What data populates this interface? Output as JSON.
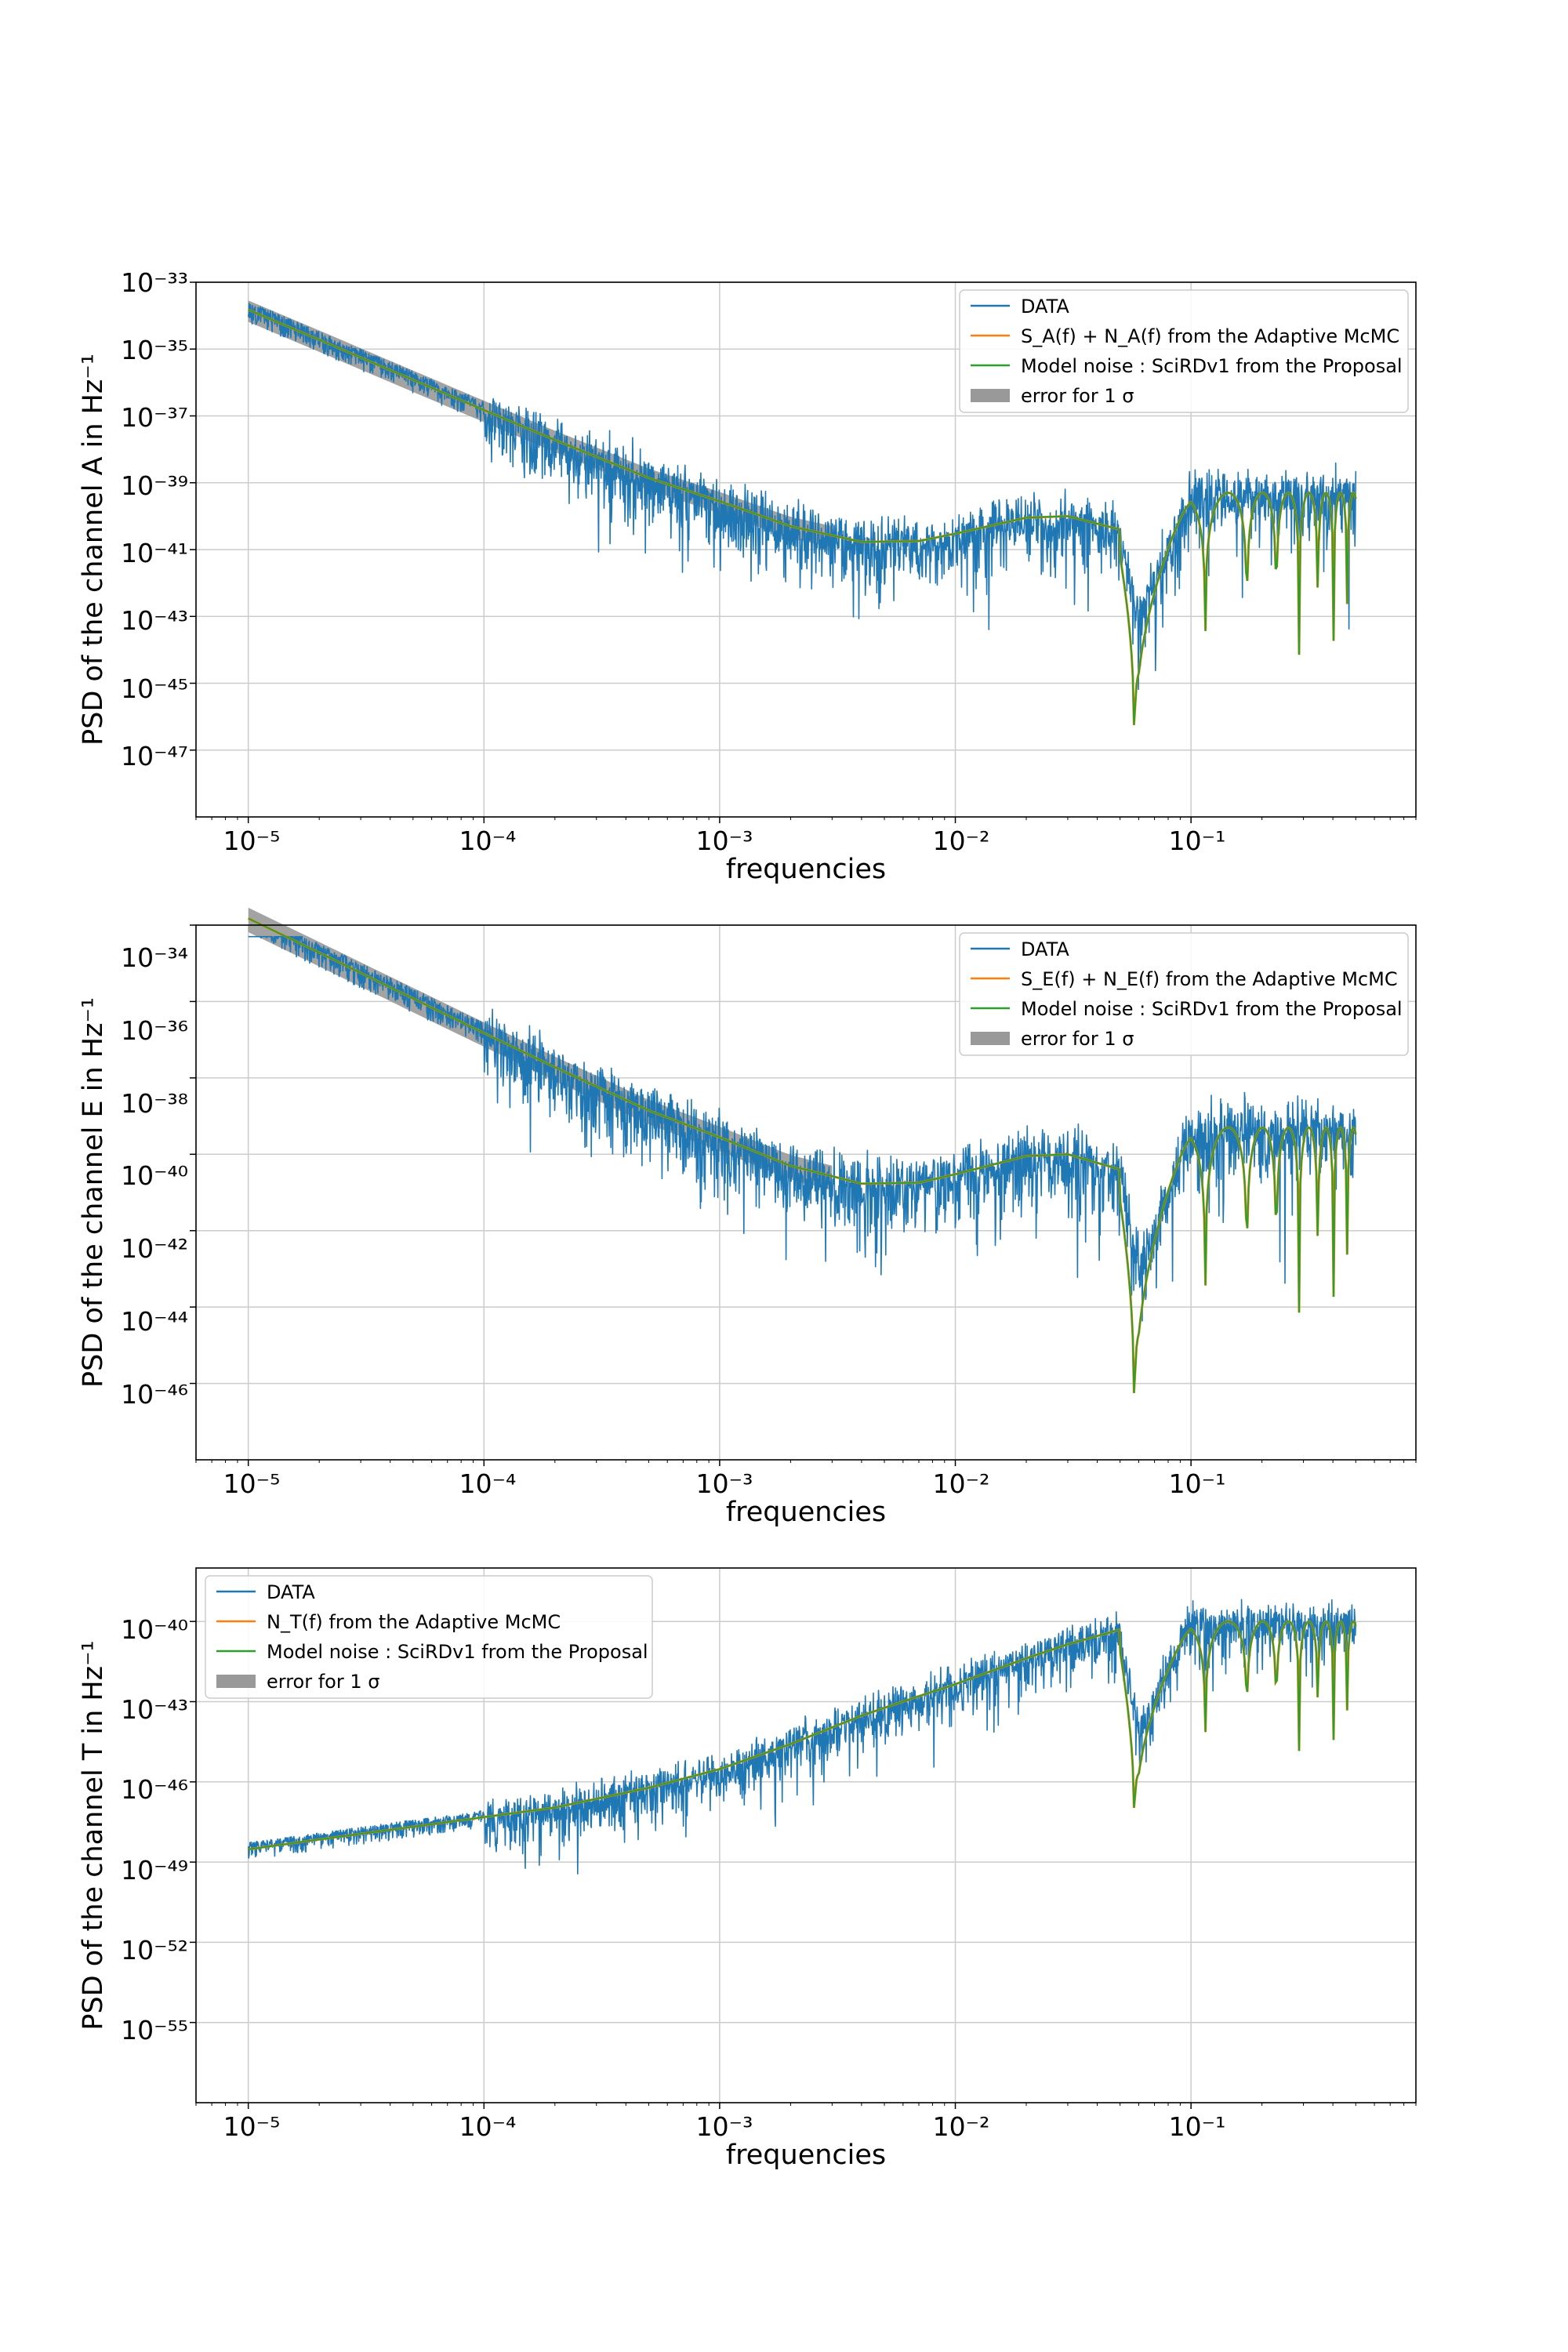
{
  "colors": {
    "data": "#1f77b4",
    "adaptive": "#ff7f0e",
    "model": "#2ca02c",
    "error": "#999999",
    "grid": "#cccccc"
  },
  "chart_data": [
    {
      "type": "line",
      "xlabel": "frequencies",
      "ylabel": "PSD of the channel A in Hz⁻¹",
      "xscale": "log",
      "yscale": "log",
      "xlim": [
        6e-06,
        0.9
      ],
      "ylim": [
        1e-49,
        1e-33
      ],
      "x_ticks": [
        1e-05,
        0.0001,
        0.001,
        0.01,
        0.1
      ],
      "x_tick_labels": [
        "10⁻⁵",
        "10⁻⁴",
        "10⁻³",
        "10⁻²",
        "10⁻¹"
      ],
      "y_tick_labels": [
        "10⁻³³",
        "10⁻³⁵",
        "10⁻³⁷",
        "10⁻³⁹",
        "10⁻⁴¹",
        "10⁻⁴³",
        "10⁻⁴⁵",
        "10⁻⁴⁷"
      ],
      "grid": true,
      "legend_position": "top-right",
      "legend": [
        "DATA",
        "S_A(f) + N_A(f) from the Adaptive McMC",
        "Model noise : SciRDv1 from the Proposal",
        "error for 1 σ"
      ],
      "series": [
        {
          "name": "DATA",
          "x": [
            1e-05,
            2e-05,
            3e-05,
            5e-05,
            8e-05,
            0.0001,
            0.0002,
            0.0005,
            0.001,
            0.002,
            0.004,
            0.01,
            0.03,
            0.06,
            0.1,
            0.2,
            0.5
          ],
          "y": [
            5e-35,
            1e-35,
            3e-37,
            5e-37,
            3e-37,
            5e-38,
            3e-38,
            5e-39,
            1e-39,
            2e-40,
            1e-40,
            1e-40,
            1e-39,
            1e-44,
            1e-39,
            1e-39,
            1e-39
          ]
        },
        {
          "name": "S_A(f) + N_A(f) from the Adaptive McMC",
          "x": [
            1e-05,
            2e-05,
            5e-05,
            0.0001,
            0.0002,
            0.0005,
            0.001,
            0.002,
            0.004,
            0.007,
            0.01,
            0.02,
            0.03,
            0.05,
            0.06,
            0.1,
            0.2,
            0.5
          ],
          "y": [
            1.5e-34,
            1.9e-35,
            1.2e-36,
            1.5e-37,
            1.9e-38,
            1.4e-39,
            2.8e-40,
            5e-41,
            1.7e-41,
            1.8e-41,
            3e-41,
            9e-41,
            1e-40,
            4e-41,
            1e-43,
            5e-40,
            5e-40,
            5e-40
          ]
        },
        {
          "name": "Model noise : SciRDv1 from the Proposal",
          "x": [
            1e-05,
            2e-05,
            5e-05,
            0.0001,
            0.0002,
            0.0005,
            0.001,
            0.002,
            0.004,
            0.007,
            0.01,
            0.02,
            0.03,
            0.05,
            0.06,
            0.1,
            0.2,
            0.5
          ],
          "y": [
            1.5e-34,
            1.9e-35,
            1.2e-36,
            1.5e-37,
            1.9e-38,
            1.4e-39,
            2.8e-40,
            5e-41,
            1.7e-41,
            1.8e-41,
            3e-41,
            9e-41,
            1e-40,
            4e-41,
            1e-43,
            5e-40,
            5e-40,
            5e-40
          ]
        }
      ]
    },
    {
      "type": "line",
      "xlabel": "frequencies",
      "ylabel": "PSD of the channel E in Hz⁻¹",
      "xscale": "log",
      "yscale": "log",
      "xlim": [
        6e-06,
        0.9
      ],
      "ylim": [
        1e-48,
        1e-34
      ],
      "x_ticks": [
        1e-05,
        0.0001,
        0.001,
        0.01,
        0.1
      ],
      "x_tick_labels": [
        "10⁻⁵",
        "10⁻⁴",
        "10⁻³",
        "10⁻²",
        "10⁻¹"
      ],
      "y_tick_labels": [
        "10⁻³⁴",
        "10⁻³⁶",
        "10⁻³⁸",
        "10⁻⁴⁰",
        "10⁻⁴²",
        "10⁻⁴⁴",
        "10⁻⁴⁶"
      ],
      "grid": true,
      "legend_position": "top-right",
      "legend": [
        "DATA",
        "S_E(f) + N_E(f) from the Adaptive McMC",
        "Model noise : SciRDv1 from the Proposal",
        "error for 1 σ"
      ],
      "series": [
        {
          "name": "DATA",
          "x": [
            1e-05,
            2e-05,
            3e-05,
            5e-05,
            8e-05,
            0.0001,
            0.0002,
            0.0005,
            0.001,
            0.002,
            0.004,
            0.01,
            0.03,
            0.06,
            0.1,
            0.2,
            0.5
          ],
          "y": [
            1e-34,
            5e-35,
            1e-35,
            3e-36,
            5e-37,
            3e-37,
            1e-38,
            3e-39,
            3e-39,
            5e-40,
            2e-40,
            5e-40,
            1e-39,
            1e-44,
            1e-39,
            1e-39,
            1e-39
          ]
        },
        {
          "name": "S_E(f) + N_E(f) from the Adaptive McMC",
          "x": [
            1e-05,
            2e-05,
            5e-05,
            0.0001,
            0.0002,
            0.0005,
            0.001,
            0.002,
            0.004,
            0.007,
            0.01,
            0.02,
            0.03,
            0.05,
            0.06,
            0.1,
            0.2,
            0.5
          ],
          "y": [
            1.5e-34,
            1.9e-35,
            1.2e-36,
            1.5e-37,
            1.9e-38,
            1.4e-39,
            2.8e-40,
            5e-41,
            1.7e-41,
            1.8e-41,
            3e-41,
            9e-41,
            1e-40,
            4e-41,
            1e-43,
            5e-40,
            5e-40,
            5e-40
          ]
        },
        {
          "name": "Model noise : SciRDv1 from the Proposal",
          "x": [
            1e-05,
            2e-05,
            5e-05,
            0.0001,
            0.0002,
            0.0005,
            0.001,
            0.002,
            0.004,
            0.007,
            0.01,
            0.02,
            0.03,
            0.05,
            0.06,
            0.1,
            0.2,
            0.5
          ],
          "y": [
            1.5e-34,
            1.9e-35,
            1.2e-36,
            1.5e-37,
            1.9e-38,
            1.4e-39,
            2.8e-40,
            5e-41,
            1.7e-41,
            1.8e-41,
            3e-41,
            9e-41,
            1e-40,
            4e-41,
            1e-43,
            5e-40,
            5e-40,
            5e-40
          ]
        }
      ]
    },
    {
      "type": "line",
      "xlabel": "frequencies",
      "ylabel": "PSD of the channel T in Hz⁻¹",
      "xscale": "log",
      "yscale": "log",
      "xlim": [
        6e-06,
        0.9
      ],
      "ylim": [
        1e-58,
        1e-38
      ],
      "x_ticks": [
        1e-05,
        0.0001,
        0.001,
        0.01,
        0.1
      ],
      "x_tick_labels": [
        "10⁻⁵",
        "10⁻⁴",
        "10⁻³",
        "10⁻²",
        "10⁻¹"
      ],
      "y_tick_labels": [
        "10⁻⁴⁰",
        "10⁻⁴³",
        "10⁻⁴⁶",
        "10⁻⁴⁹",
        "10⁻⁵²",
        "10⁻⁵⁵"
      ],
      "grid": true,
      "legend_position": "top-left",
      "legend": [
        "DATA",
        "N_T(f) from the Adaptive McMC",
        "Model noise : SciRDv1 from the Proposal",
        "error for 1 σ"
      ],
      "series": [
        {
          "name": "DATA",
          "x": [
            1e-05,
            2e-05,
            3e-05,
            5e-05,
            8e-05,
            0.0001,
            0.0002,
            0.0005,
            0.001,
            0.002,
            0.004,
            0.01,
            0.03,
            0.06,
            0.1,
            0.2,
            0.5
          ],
          "y": [
            1e-48,
            1e-48,
            3e-48,
            1e-48,
            1e-47,
            3e-48,
            1e-47,
            3e-46,
            1e-45,
            1e-43,
            1e-42,
            1e-41,
            1e-40,
            1e-40,
            1e-40,
            1e-40,
            1e-40
          ]
        },
        {
          "name": "N_T(f) from the Adaptive McMC",
          "x": [
            1e-05,
            2e-05,
            5e-05,
            0.0001,
            0.0002,
            0.0005,
            0.001,
            0.002,
            0.004,
            0.007,
            0.01,
            0.02,
            0.03,
            0.05,
            0.06,
            0.1,
            0.2,
            0.5
          ],
          "y": [
            3e-49,
            7e-49,
            2.1e-48,
            4.8e-48,
            1.1e-47,
            6e-47,
            3e-46,
            2.6e-45,
            3e-44,
            1.6e-43,
            4.5e-43,
            4.2e-42,
            1.4e-41,
            5e-41,
            1e-44,
            1e-40,
            1e-40,
            1e-40
          ]
        },
        {
          "name": "Model noise : SciRDv1 from the Proposal",
          "x": [
            1e-05,
            2e-05,
            5e-05,
            0.0001,
            0.0002,
            0.0005,
            0.001,
            0.002,
            0.004,
            0.007,
            0.01,
            0.02,
            0.03,
            0.05,
            0.06,
            0.1,
            0.2,
            0.5
          ],
          "y": [
            3e-49,
            7e-49,
            2.1e-48,
            4.8e-48,
            1.1e-47,
            6e-47,
            3e-46,
            2.6e-45,
            3e-44,
            1.6e-43,
            4.5e-43,
            4.2e-42,
            1.4e-41,
            5e-41,
            1e-44,
            1e-40,
            1e-40,
            1e-40
          ]
        }
      ]
    }
  ]
}
